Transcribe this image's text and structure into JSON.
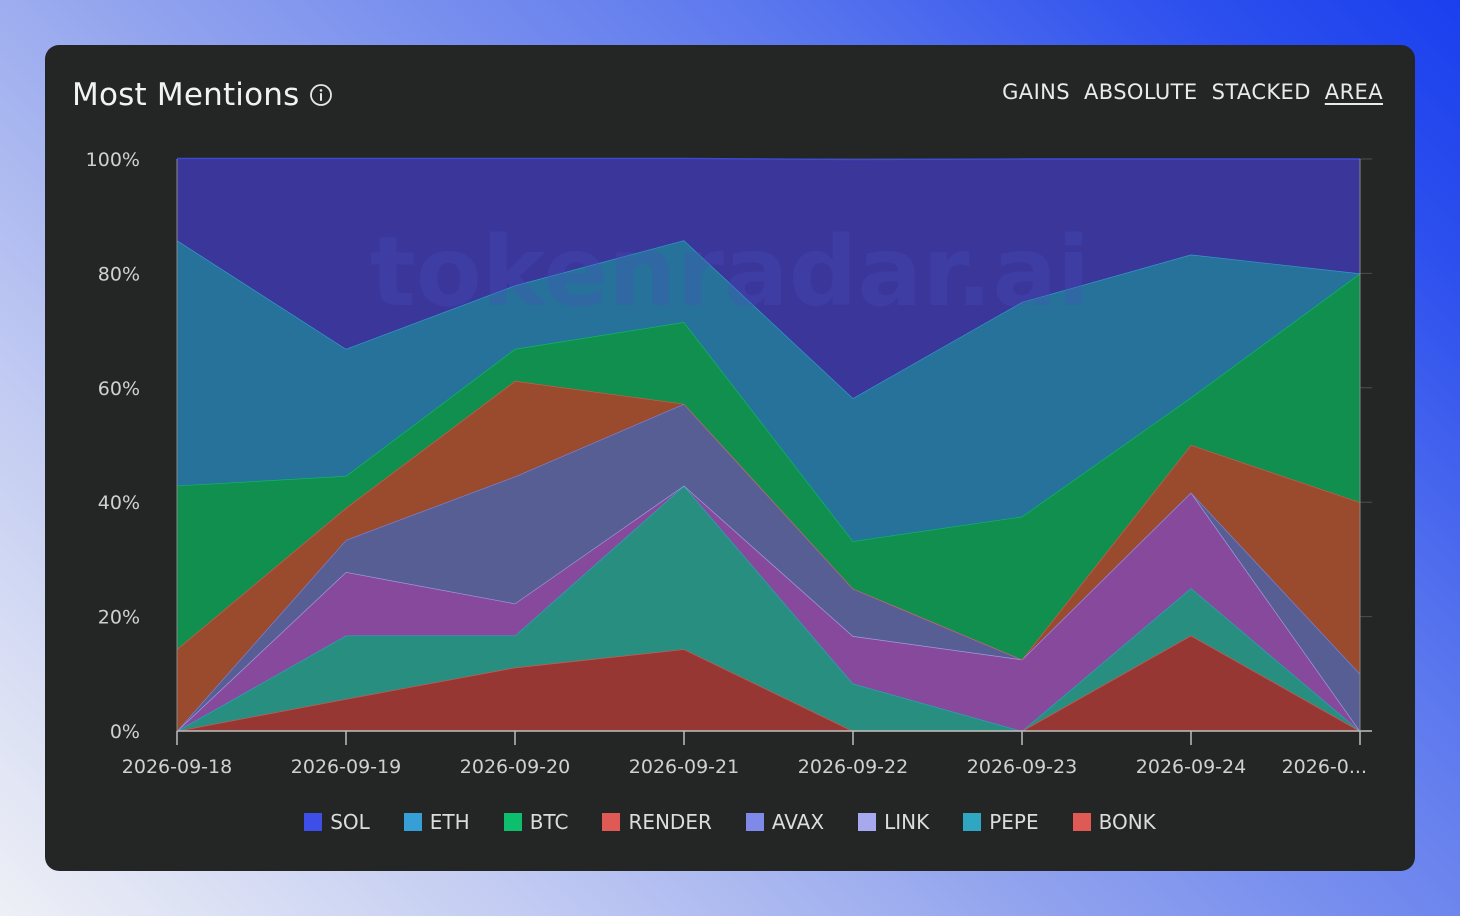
{
  "card": {
    "title": "Most Mentions",
    "tabs": [
      {
        "label": "GAINS",
        "active": false
      },
      {
        "label": "ABSOLUTE",
        "active": false
      },
      {
        "label": "STACKED",
        "active": false
      },
      {
        "label": "AREA",
        "active": true
      }
    ],
    "watermark": "tokenradar.ai"
  },
  "chart_data": {
    "type": "area",
    "stacked": true,
    "normalized": true,
    "x": [
      "2026-09-18",
      "2026-09-19",
      "2026-09-20",
      "2026-09-21",
      "2026-09-22",
      "2026-09-23",
      "2026-09-24",
      "2026-0..."
    ],
    "y_ticks": [
      "0%",
      "20%",
      "40%",
      "60%",
      "80%",
      "100%"
    ],
    "ylim": [
      0,
      100
    ],
    "grid": true,
    "legend_position": "bottom",
    "series": [
      {
        "name": "BONK",
        "color": "#e05a55",
        "fill": "#963734",
        "values": [
          0,
          5.6,
          11.1,
          14.3,
          0,
          0,
          16.7,
          0
        ]
      },
      {
        "name": "PEPE",
        "color": "#2fa6c2",
        "fill": "#288f80",
        "values": [
          0,
          11.1,
          5.6,
          28.6,
          8.3,
          0,
          8.3,
          0
        ]
      },
      {
        "name": "LINK",
        "color": "#a6a9ee",
        "fill": "#87499b",
        "values": [
          0,
          11.1,
          5.6,
          0,
          8.3,
          12.5,
          16.7,
          0
        ]
      },
      {
        "name": "AVAX",
        "color": "#7f8ae8",
        "fill": "#575e93",
        "values": [
          0,
          5.6,
          22.2,
          14.3,
          8.3,
          0,
          0,
          10
        ]
      },
      {
        "name": "RENDER",
        "color": "#e05a55",
        "fill": "#9a4a2d",
        "values": [
          14.3,
          5.6,
          16.7,
          0,
          0,
          0,
          8.3,
          30
        ]
      },
      {
        "name": "BTC",
        "color": "#0dbf6c",
        "fill": "#108f4e",
        "values": [
          28.6,
          5.6,
          5.6,
          14.3,
          8.3,
          25,
          8.3,
          40
        ]
      },
      {
        "name": "ETH",
        "color": "#36a0d6",
        "fill": "#26729a",
        "values": [
          42.9,
          22.2,
          11.1,
          14.3,
          25,
          37.5,
          25,
          0
        ]
      },
      {
        "name": "SOL",
        "color": "#3d4fe8",
        "fill": "#3a369a",
        "values": [
          14.3,
          33.3,
          22.2,
          14.3,
          41.7,
          25,
          16.7,
          20
        ]
      }
    ],
    "legend_order": [
      "SOL",
      "ETH",
      "BTC",
      "RENDER",
      "AVAX",
      "LINK",
      "PEPE",
      "BONK"
    ]
  }
}
